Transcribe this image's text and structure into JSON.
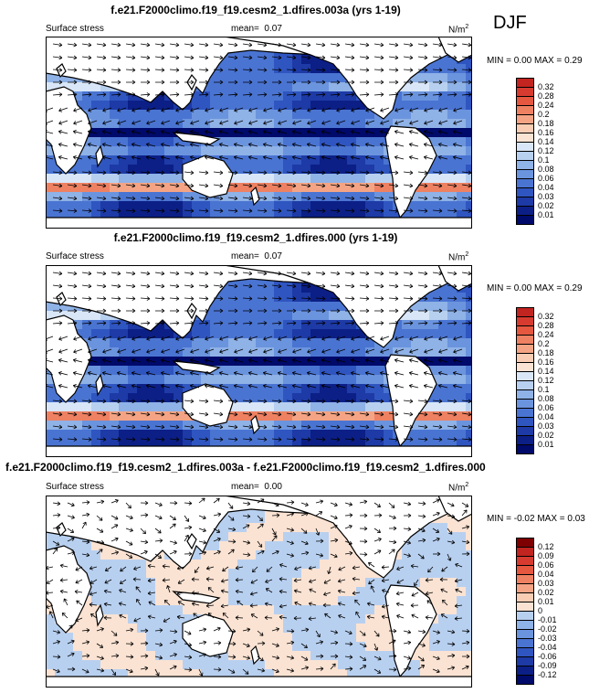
{
  "season": "DJF",
  "colors": {
    "positive": [
      "#fbe3d3",
      "#f9cdb4",
      "#f4a484",
      "#ee8162",
      "#e5573f",
      "#d73b2f",
      "#c2241f",
      "#a31212",
      "#7f0000"
    ],
    "negative": [
      "#d8e6f7",
      "#b8d0f0",
      "#8fb2e7",
      "#6b94de",
      "#4a74d2",
      "#2f55c0",
      "#1d3aa6",
      "#0c1f86",
      "#000a6a"
    ],
    "land": "#ffffff",
    "coast": "#000000",
    "arrow": "#000000"
  },
  "panels": [
    {
      "title": "f.e21.F2000climo.f19_f19.cesm2_1.dfires.003a (yrs 1-19)",
      "variable": "Surface stress",
      "mean_label": "mean=",
      "mean_value": "0.07",
      "units": "N/m",
      "units_power": "2",
      "min_label": "MIN =",
      "min_value": "0.00",
      "max_label": "MAX =",
      "max_value": "0.29",
      "colorbar_labels": [
        "0.32",
        "0.28",
        "0.24",
        "0.2",
        "0.18",
        "0.16",
        "0.14",
        "0.12",
        "0.1",
        "0.08",
        "0.06",
        "0.04",
        "0.03",
        "0.02",
        "0.01"
      ]
    },
    {
      "title": "f.e21.F2000climo.f19_f19.cesm2_1.dfires.000 (yrs 1-19)",
      "variable": "Surface stress",
      "mean_label": "mean=",
      "mean_value": "0.07",
      "units": "N/m",
      "units_power": "2",
      "min_label": "MIN =",
      "min_value": "0.00",
      "max_label": "MAX =",
      "max_value": "0.29",
      "colorbar_labels": [
        "0.32",
        "0.28",
        "0.24",
        "0.2",
        "0.18",
        "0.16",
        "0.14",
        "0.12",
        "0.1",
        "0.08",
        "0.06",
        "0.04",
        "0.03",
        "0.02",
        "0.01"
      ]
    },
    {
      "title": "f.e21.F2000climo.f19_f19.cesm2_1.dfires.003a - f.e21.F2000climo.f19_f19.cesm2_1.dfires.000",
      "variable": "Surface stress",
      "mean_label": "mean=",
      "mean_value": "0.00",
      "units": "N/m",
      "units_power": "2",
      "min_label": "MIN =",
      "min_value": "-0.02",
      "max_label": "MAX =",
      "max_value": "0.03",
      "colorbar_labels": [
        "0.12",
        "0.09",
        "0.06",
        "0.04",
        "0.03",
        "0.02",
        "0.01",
        "0",
        "-0.01",
        "-0.02",
        "-0.03",
        "-0.04",
        "-0.06",
        "-0.09",
        "-0.12"
      ]
    }
  ]
}
